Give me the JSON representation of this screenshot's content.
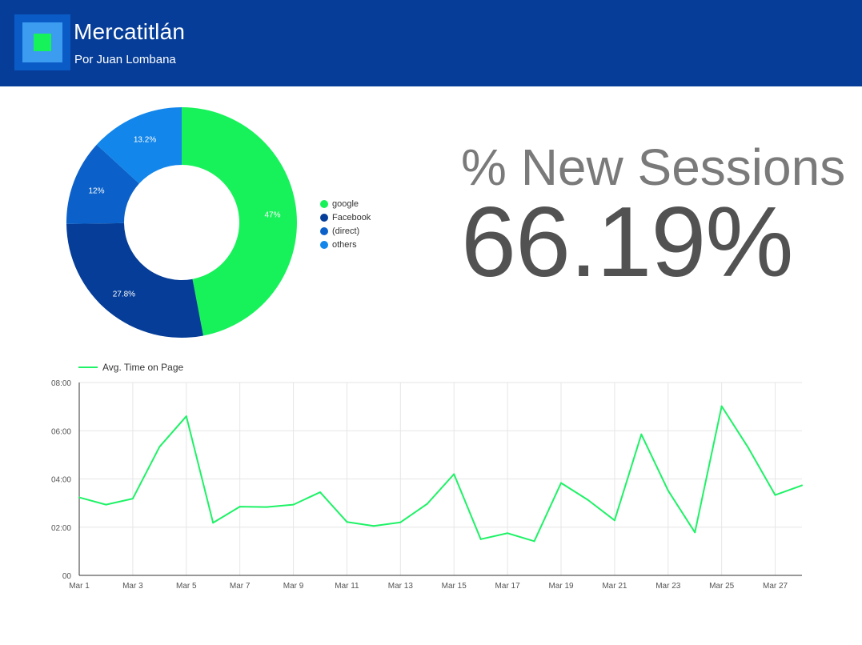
{
  "header": {
    "title": "Mercatitlán",
    "subtitle": "Por Juan Lombana",
    "background": "#053d98"
  },
  "kpi": {
    "label": "% New Sessions",
    "value": "66.19%"
  },
  "chart_data": [
    {
      "type": "pie",
      "donut": true,
      "legend_position": "right",
      "slices": [
        {
          "label": "google",
          "value": 47,
          "display": "47%",
          "color": "#18f25a"
        },
        {
          "label": "Facebook",
          "value": 27.8,
          "display": "27.8%",
          "color": "#053d98"
        },
        {
          "label": "(direct)",
          "value": 12,
          "display": "12%",
          "color": "#0b61c9"
        },
        {
          "label": "others",
          "value": 13.2,
          "display": "13.2%",
          "color": "#1286ea"
        }
      ]
    },
    {
      "type": "line",
      "legend_position": "top-left",
      "grid": true,
      "series": [
        {
          "name": "Avg. Time on Page",
          "color": "#1ef266",
          "values_seconds": [
            194,
            176,
            191,
            320,
            396,
            131,
            171,
            170,
            176,
            207,
            133,
            123,
            132,
            178,
            252,
            90,
            105,
            85,
            230,
            188,
            137,
            351,
            211,
            107,
            421,
            317,
            200,
            224
          ]
        }
      ],
      "x": [
        "Mar 1",
        "Mar 2",
        "Mar 3",
        "Mar 4",
        "Mar 5",
        "Mar 6",
        "Mar 7",
        "Mar 8",
        "Mar 9",
        "Mar 10",
        "Mar 11",
        "Mar 12",
        "Mar 13",
        "Mar 14",
        "Mar 15",
        "Mar 16",
        "Mar 17",
        "Mar 18",
        "Mar 19",
        "Mar 20",
        "Mar 21",
        "Mar 22",
        "Mar 23",
        "Mar 24",
        "Mar 25",
        "Mar 26",
        "Mar 27",
        "Mar 28"
      ],
      "x_tick_labels": [
        "Mar 1",
        "Mar 3",
        "Mar 5",
        "Mar 7",
        "Mar 9",
        "Mar 11",
        "Mar 13",
        "Mar 15",
        "Mar 17",
        "Mar 19",
        "Mar 21",
        "Mar 23",
        "Mar 25",
        "Mar 27"
      ],
      "y_ticks": [
        {
          "seconds": 0,
          "label": "00"
        },
        {
          "seconds": 120,
          "label": "02:00"
        },
        {
          "seconds": 240,
          "label": "04:00"
        },
        {
          "seconds": 360,
          "label": "06:00"
        },
        {
          "seconds": 480,
          "label": "08:00"
        }
      ],
      "ylim": [
        0,
        480
      ]
    }
  ]
}
